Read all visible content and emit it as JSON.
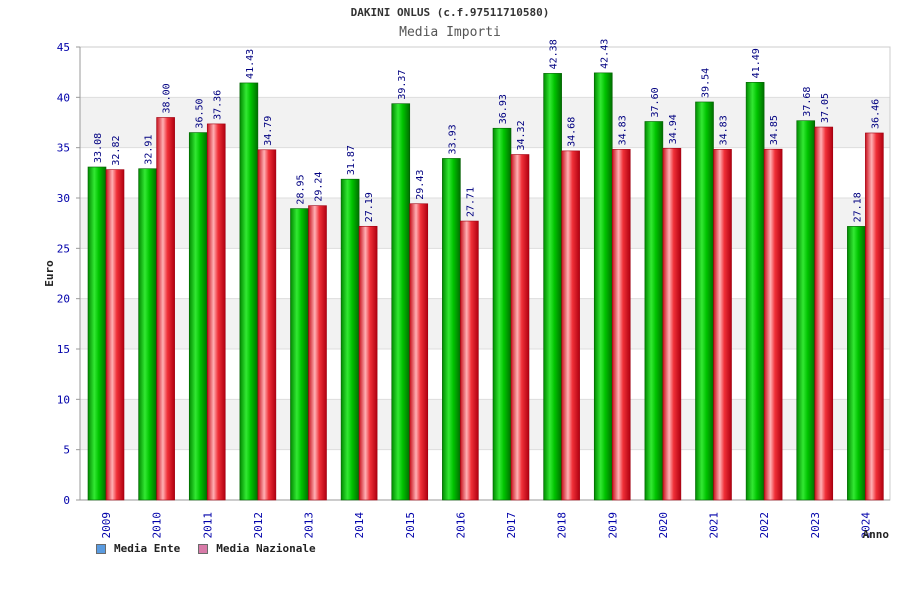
{
  "chart_data": {
    "type": "bar",
    "title": "DAKINI ONLUS (c.f.97511710580)",
    "subtitle": "Media Importi",
    "ylabel": "Euro",
    "xlabel": "Anno",
    "ylim": [
      0,
      45
    ],
    "yticks": [
      0,
      5,
      10,
      15,
      20,
      25,
      30,
      35,
      40,
      45
    ],
    "grid": true,
    "legend_position": "bottom-left",
    "categories": [
      "2009",
      "2010",
      "2011",
      "2012",
      "2013",
      "2014",
      "2015",
      "2016",
      "2017",
      "2018",
      "2019",
      "2020",
      "2021",
      "2022",
      "2023",
      "2024"
    ],
    "series": [
      {
        "name": "Media Ente",
        "color": "#00b000",
        "legend_color": "#5a9be0",
        "values": [
          33.08,
          32.91,
          36.5,
          41.43,
          28.95,
          31.87,
          39.37,
          33.93,
          36.93,
          42.38,
          42.43,
          37.6,
          39.54,
          41.49,
          37.68,
          27.18
        ],
        "labels": [
          "33.08",
          "32.91",
          "36.50",
          "41.43",
          "28.95",
          "31.87",
          "39.37",
          "33.93",
          "36.93",
          "42.38",
          "42.43",
          "37.60",
          "39.54",
          "41.49",
          "37.68",
          "27.18"
        ]
      },
      {
        "name": "Media Nazionale",
        "color": "#e8202c",
        "legend_color": "#d87aa8",
        "values": [
          32.82,
          38.0,
          37.36,
          34.79,
          29.24,
          27.19,
          29.43,
          27.71,
          34.32,
          34.68,
          34.83,
          34.94,
          34.83,
          34.85,
          37.05,
          36.46
        ],
        "labels": [
          "32.82",
          "38.00",
          "37.36",
          "34.79",
          "29.24",
          "27.19",
          "29.43",
          "27.71",
          "34.32",
          "34.68",
          "34.83",
          "34.94",
          "34.83",
          "34.85",
          "37.05",
          "36.46"
        ]
      }
    ]
  }
}
